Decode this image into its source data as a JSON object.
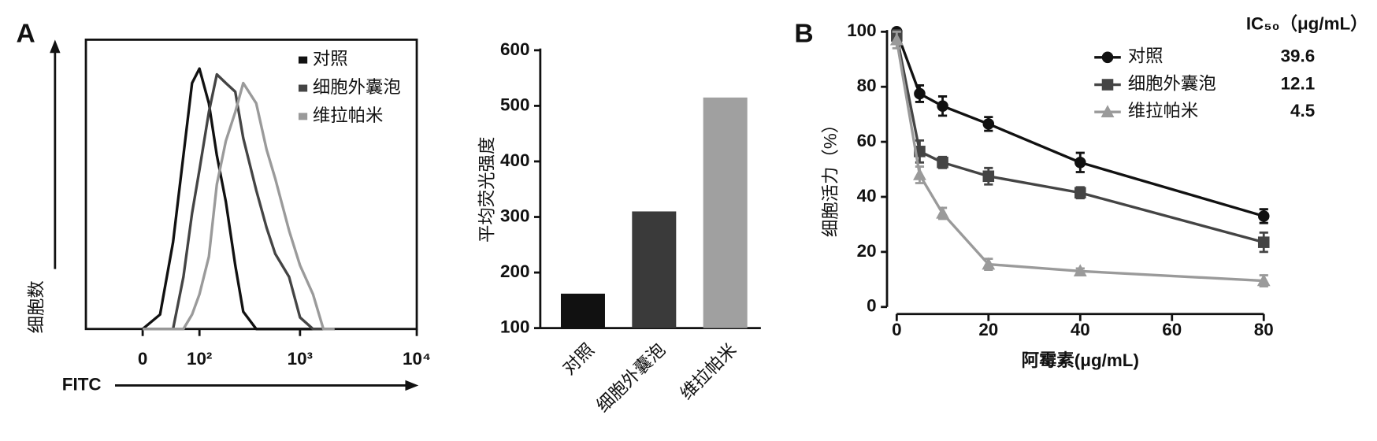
{
  "chart_data": [
    {
      "type": "line",
      "panel": "A",
      "x_label": "FITC",
      "y_label": "细胞数",
      "xscale": "symlog",
      "x": [
        0,
        20,
        40,
        60,
        80,
        100,
        130,
        160,
        200,
        250,
        300,
        400,
        500,
        600,
        800,
        1000,
        1300,
        1600,
        2000
      ],
      "xlim": [
        -100,
        10000
      ],
      "xticks": [
        0,
        {
          "value": 100,
          "label": "10²"
        },
        {
          "value": 1000,
          "label": "10³"
        },
        {
          "value": 10000,
          "label": "10⁴"
        }
      ],
      "ylim": [
        0,
        100
      ],
      "series": [
        {
          "name": "对照",
          "color": "#111111",
          "values": [
            0,
            5,
            30,
            60,
            85,
            90,
            78,
            60,
            44,
            22,
            6,
            0,
            0,
            0,
            0,
            0,
            0,
            0,
            0
          ]
        },
        {
          "name": "细胞外囊泡",
          "color": "#444444",
          "values": [
            0,
            0,
            0,
            18,
            40,
            55,
            75,
            88,
            85,
            82,
            66,
            48,
            35,
            26,
            18,
            4,
            0,
            0,
            0
          ]
        },
        {
          "name": "维拉帕米",
          "color": "#9a9a9a",
          "values": [
            0,
            0,
            0,
            0,
            5,
            12,
            25,
            50,
            65,
            75,
            85,
            78,
            62,
            52,
            34,
            22,
            12,
            0,
            0
          ]
        }
      ]
    },
    {
      "type": "bar",
      "y_label": "平均荧光强度",
      "categories": [
        "对照",
        "细胞外囊泡",
        "维拉帕米"
      ],
      "values": [
        162,
        310,
        515
      ],
      "colors": [
        "#111111",
        "#3a3a3a",
        "#a0a0a0"
      ],
      "ylim": [
        100,
        600
      ],
      "yticks": [
        100,
        200,
        300,
        400,
        500,
        600
      ]
    },
    {
      "type": "line",
      "panel": "B",
      "x_label": "阿霉素(μg/mL)",
      "y_label": "细胞活力（%）",
      "ic50_header": "IC₅₀（μg/mL）",
      "x": [
        0,
        5,
        10,
        20,
        40,
        80
      ],
      "xlim": [
        0,
        80
      ],
      "xticks": [
        0,
        20,
        40,
        60,
        80
      ],
      "ylim": [
        0,
        100
      ],
      "yticks": [
        0,
        20,
        40,
        60,
        80,
        100
      ],
      "series": [
        {
          "name": "对照",
          "color": "#111111",
          "marker": "circle",
          "ic50": "39.6",
          "values": [
            100,
            77.5,
            73,
            66.5,
            52.5,
            33
          ],
          "errors": [
            1,
            3,
            3.5,
            2.5,
            3.5,
            2.5
          ]
        },
        {
          "name": "细胞外囊泡",
          "color": "#444444",
          "marker": "square",
          "ic50": "12.1",
          "values": [
            98.5,
            56.5,
            52.5,
            47.5,
            41.5,
            23.5
          ],
          "errors": [
            2,
            4,
            2,
            3,
            2,
            3.5
          ]
        },
        {
          "name": "维拉帕米",
          "color": "#9a9a9a",
          "marker": "triangle",
          "ic50": "4.5",
          "values": [
            97,
            48,
            34,
            15.5,
            13,
            9.5
          ],
          "errors": [
            3,
            3,
            2,
            2,
            1,
            2
          ]
        }
      ]
    }
  ]
}
